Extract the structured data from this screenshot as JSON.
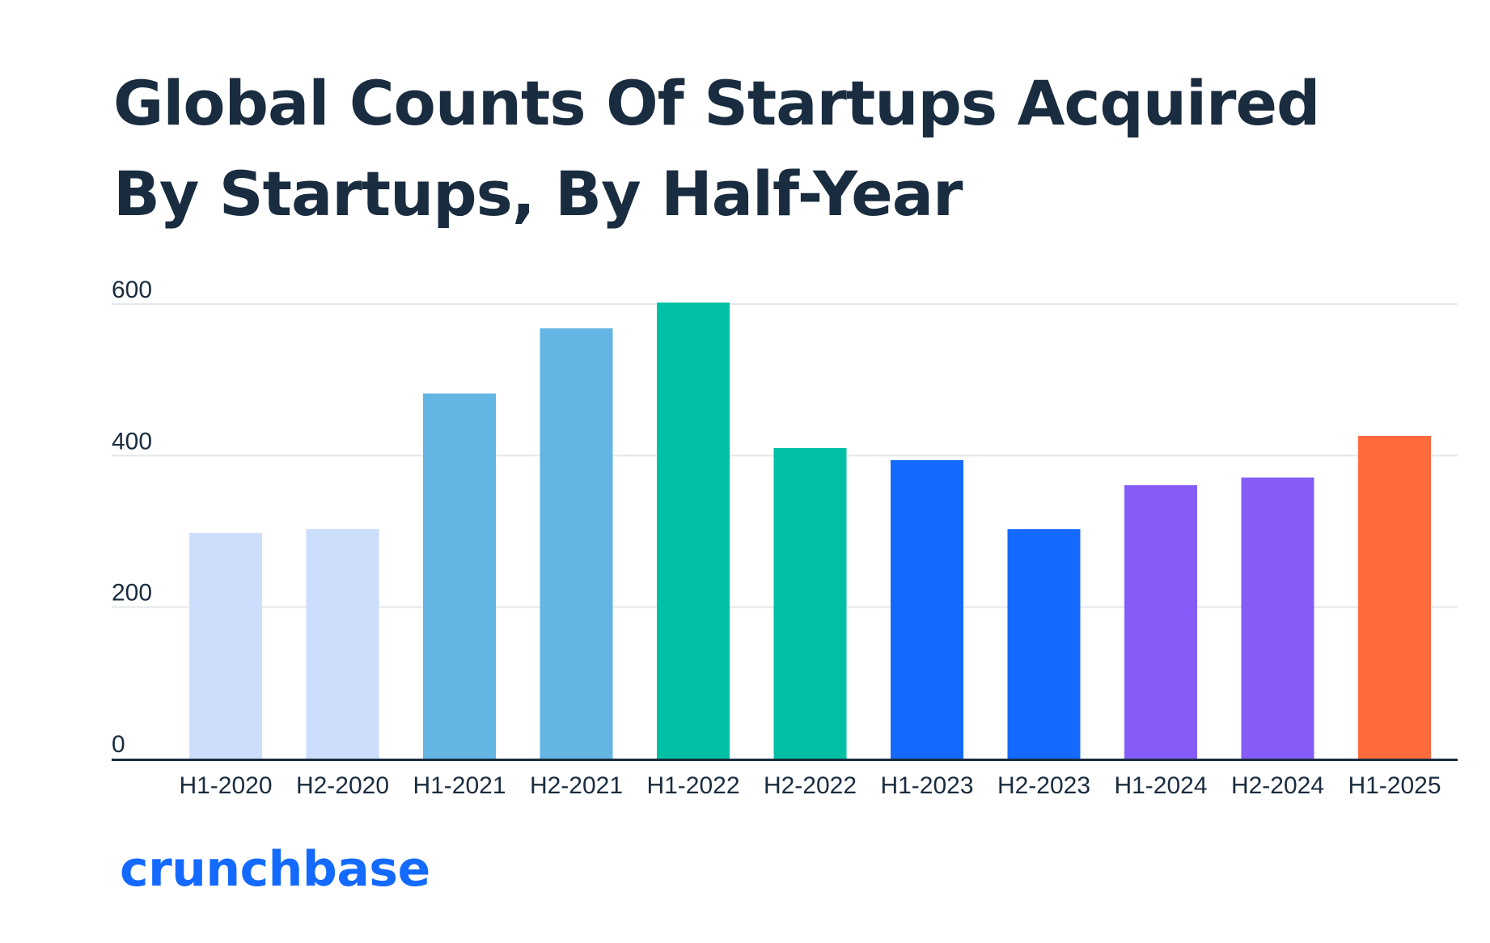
{
  "colors": {
    "text": "#1a2c3f",
    "grid": "#e3e7eb",
    "axis": "#1a2c3f",
    "brand": "#146aff"
  },
  "brand": {
    "logo_text": "crunchbase"
  },
  "chart_data": {
    "type": "bar",
    "title": "Global Counts Of Startups Acquired By Startups, By Half-Year",
    "xlabel": "",
    "ylabel": "",
    "ylim": [
      0,
      600
    ],
    "grid": true,
    "yticks": [
      0,
      200,
      400,
      600
    ],
    "yticks_labels": [
      "0",
      "200",
      "400",
      "600"
    ],
    "categories": [
      "H1-2020",
      "H2-2020",
      "H1-2021",
      "H2-2021",
      "H1-2022",
      "H2-2022",
      "H1-2023",
      "H2-2023",
      "H1-2024",
      "H2-2024",
      "H1-2025"
    ],
    "values": [
      298,
      303,
      482,
      568,
      602,
      410,
      394,
      303,
      361,
      371,
      426
    ],
    "bar_colors": [
      "#cddefd",
      "#cddefd",
      "#63b5e4",
      "#63b5e4",
      "#00c1a5",
      "#00c1a5",
      "#146aff",
      "#146aff",
      "#855cf8",
      "#855cf8",
      "#ff6b3d"
    ]
  }
}
